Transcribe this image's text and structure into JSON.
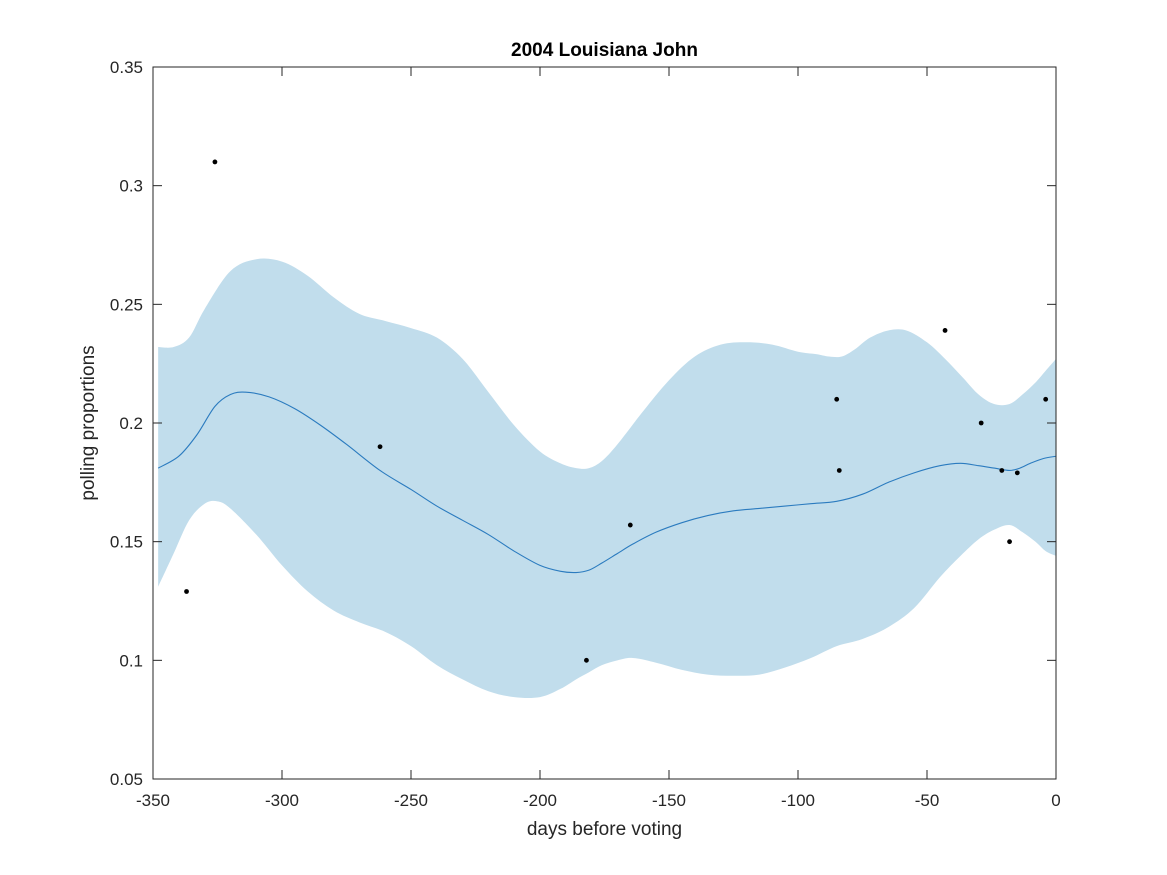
{
  "chart_data": {
    "type": "line",
    "title": "2004 Louisiana John",
    "xlabel": "days before voting",
    "ylabel": "polling proportions",
    "xlim": [
      -350,
      0
    ],
    "ylim": [
      0.05,
      0.35
    ],
    "xticks": [
      -350,
      -300,
      -250,
      -200,
      -150,
      -100,
      -50,
      0
    ],
    "xtick_labels": [
      "-350",
      "-300",
      "-250",
      "-200",
      "-150",
      "-100",
      "-50",
      "0"
    ],
    "yticks": [
      0.05,
      0.1,
      0.15,
      0.2,
      0.25,
      0.3,
      0.35
    ],
    "ytick_labels": [
      "0.05",
      "0.1",
      "0.15",
      "0.2",
      "0.25",
      "0.3",
      "0.35"
    ],
    "grid": false,
    "legend": "none",
    "colors": {
      "band": "#c1ddec",
      "line": "#2b7bbf",
      "points": "#000000",
      "axes": "#262626"
    },
    "mean": {
      "x": [
        -348,
        -340,
        -333,
        -326,
        -320,
        -314,
        -305,
        -295,
        -285,
        -275,
        -262,
        -250,
        -240,
        -230,
        -220,
        -210,
        -200,
        -192,
        -186,
        -181,
        -176,
        -170,
        -164,
        -155,
        -145,
        -135,
        -125,
        -115,
        -105,
        -95,
        -85,
        -75,
        -65,
        -55,
        -45,
        -37,
        -30,
        -24,
        -18,
        -14,
        -10,
        -5,
        0
      ],
      "y": [
        0.181,
        0.186,
        0.195,
        0.207,
        0.212,
        0.213,
        0.211,
        0.206,
        0.199,
        0.191,
        0.18,
        0.172,
        0.165,
        0.159,
        0.153,
        0.146,
        0.14,
        0.1375,
        0.137,
        0.138,
        0.141,
        0.145,
        0.149,
        0.154,
        0.158,
        0.161,
        0.163,
        0.164,
        0.165,
        0.166,
        0.167,
        0.17,
        0.175,
        0.179,
        0.182,
        0.183,
        0.182,
        0.181,
        0.18,
        0.181,
        0.183,
        0.185,
        0.186
      ]
    },
    "upper": {
      "x": [
        -348,
        -342,
        -336,
        -330,
        -320,
        -310,
        -300,
        -290,
        -280,
        -270,
        -260,
        -250,
        -240,
        -230,
        -220,
        -210,
        -200,
        -192,
        -186,
        -181,
        -176,
        -170,
        -160,
        -150,
        -140,
        -130,
        -120,
        -110,
        -100,
        -93,
        -88,
        -83,
        -78,
        -72,
        -65,
        -58,
        -50,
        -43,
        -36,
        -30,
        -24,
        -18,
        -13,
        -8,
        -4,
        0
      ],
      "y": [
        0.232,
        0.232,
        0.236,
        0.248,
        0.264,
        0.269,
        0.268,
        0.262,
        0.253,
        0.246,
        0.243,
        0.24,
        0.236,
        0.227,
        0.213,
        0.199,
        0.188,
        0.183,
        0.181,
        0.181,
        0.184,
        0.191,
        0.205,
        0.218,
        0.228,
        0.233,
        0.234,
        0.233,
        0.23,
        0.229,
        0.228,
        0.228,
        0.231,
        0.236,
        0.239,
        0.239,
        0.234,
        0.227,
        0.219,
        0.212,
        0.208,
        0.208,
        0.212,
        0.217,
        0.222,
        0.227
      ]
    },
    "lower": {
      "x": [
        -348,
        -342,
        -336,
        -330,
        -325,
        -320,
        -310,
        -300,
        -290,
        -280,
        -270,
        -260,
        -250,
        -240,
        -230,
        -220,
        -210,
        -200,
        -192,
        -186,
        -181,
        -176,
        -170,
        -164,
        -155,
        -145,
        -135,
        -125,
        -115,
        -105,
        -95,
        -85,
        -75,
        -65,
        -55,
        -45,
        -37,
        -30,
        -24,
        -18,
        -13,
        -8,
        -4,
        0
      ],
      "y": [
        0.131,
        0.145,
        0.159,
        0.166,
        0.167,
        0.164,
        0.153,
        0.14,
        0.129,
        0.121,
        0.116,
        0.112,
        0.106,
        0.098,
        0.092,
        0.087,
        0.0845,
        0.0845,
        0.088,
        0.092,
        0.095,
        0.098,
        0.1,
        0.101,
        0.099,
        0.096,
        0.094,
        0.0935,
        0.094,
        0.097,
        0.101,
        0.106,
        0.109,
        0.114,
        0.122,
        0.135,
        0.144,
        0.151,
        0.155,
        0.157,
        0.154,
        0.15,
        0.146,
        0.144
      ]
    },
    "points": {
      "x": [
        -337,
        -326,
        -262,
        -182,
        -165,
        -85,
        -84,
        -43,
        -29,
        -21,
        -18,
        -15,
        -4
      ],
      "y": [
        0.129,
        0.31,
        0.19,
        0.1,
        0.157,
        0.21,
        0.18,
        0.239,
        0.2,
        0.18,
        0.15,
        0.179,
        0.21
      ]
    }
  }
}
